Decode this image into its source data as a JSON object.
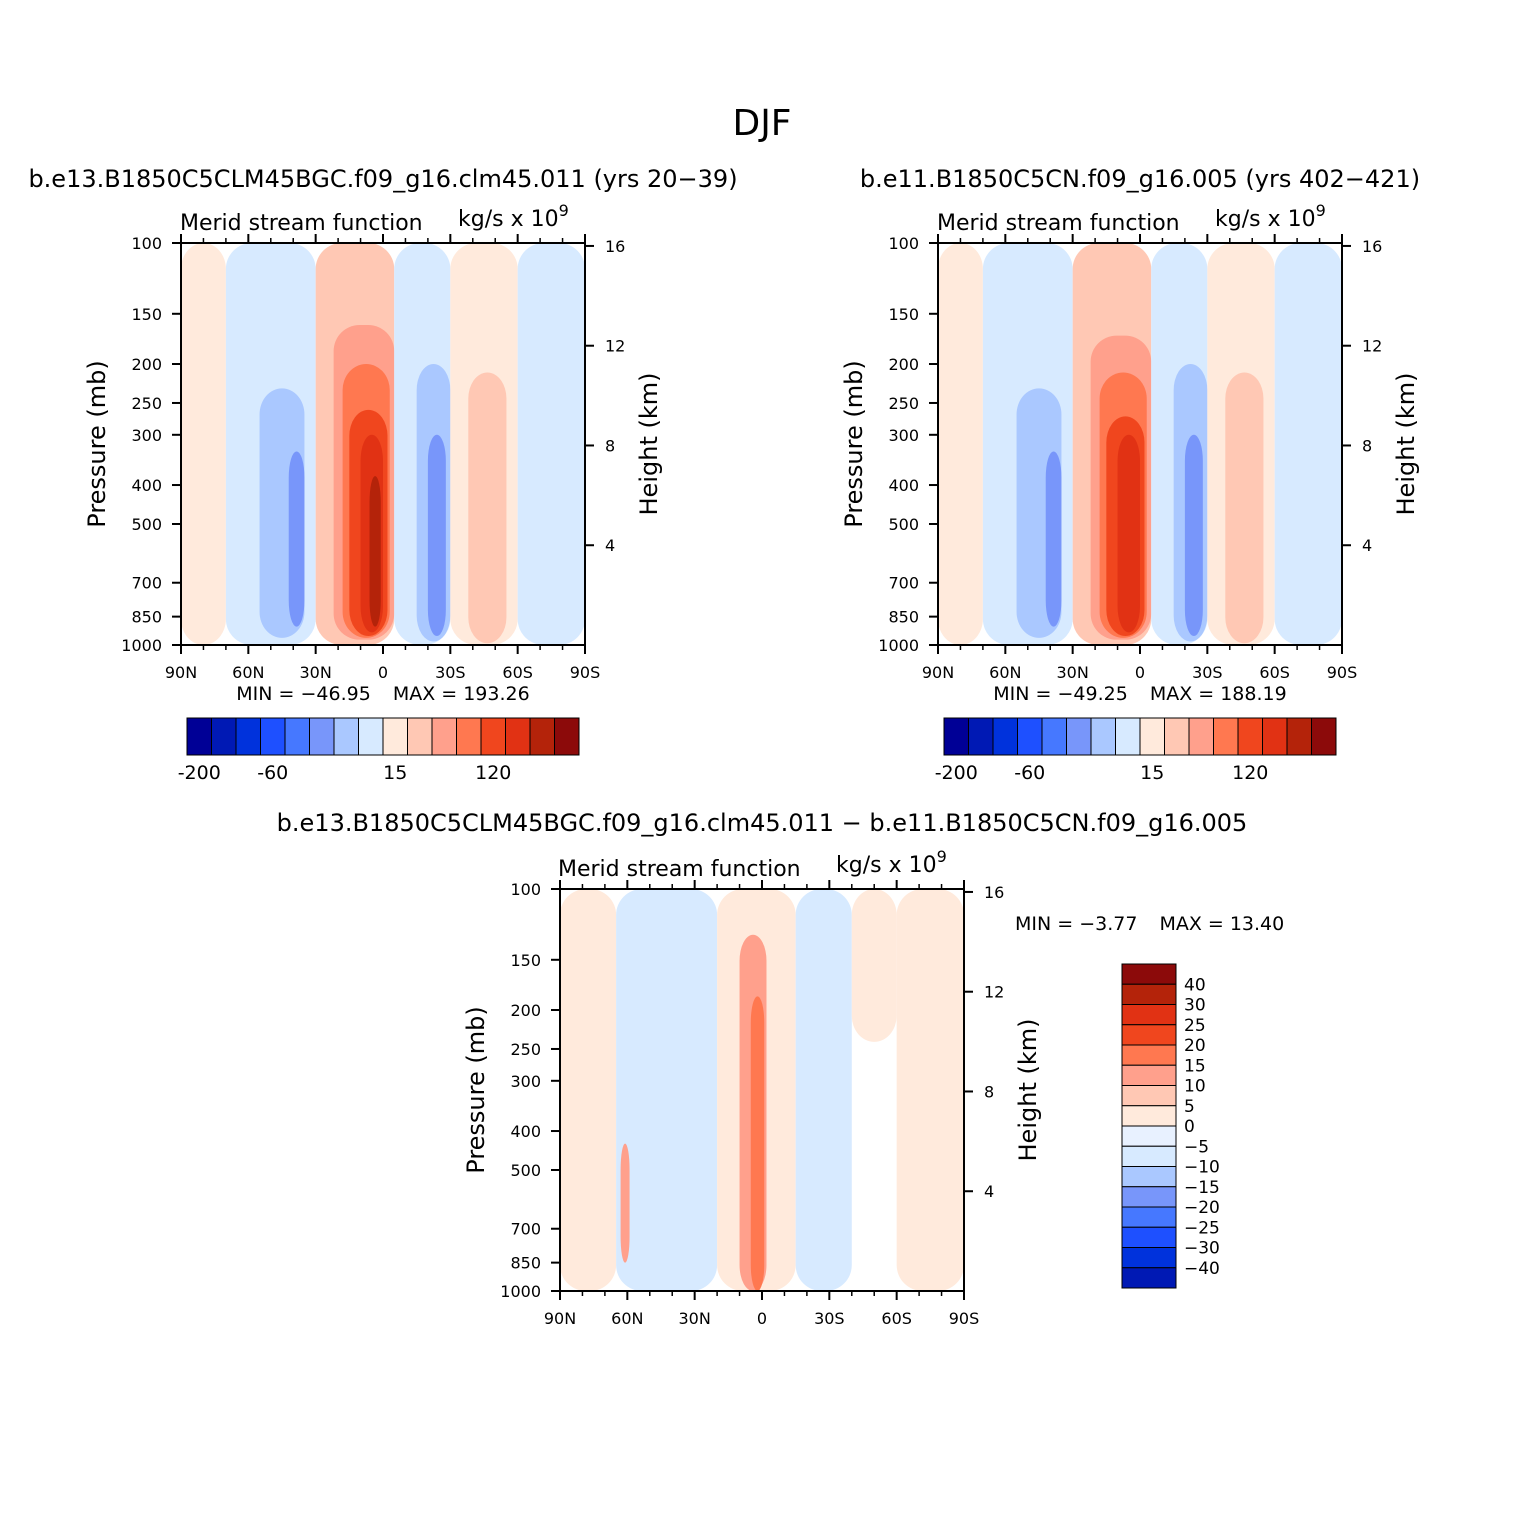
{
  "page_title": "DJF",
  "shared_axes": {
    "y_label": "Pressure (mb)",
    "y2_label": "Height (km)",
    "pressure_ticks": [
      100,
      150,
      200,
      250,
      300,
      400,
      500,
      700,
      850,
      1000
    ],
    "pressure_tick_labels": [
      "100",
      "150",
      "200",
      "250",
      "300",
      "400",
      "500",
      "700",
      "850",
      "1000"
    ],
    "height_ticks_km": [
      16,
      12,
      8,
      4
    ],
    "height_tick_labels": [
      "16",
      "12",
      "8",
      "4"
    ],
    "lat_ticks": [
      90,
      60,
      30,
      0,
      -30,
      -60,
      -90
    ],
    "lat_tick_labels": [
      "90N",
      "60N",
      "30N",
      "0",
      "30S",
      "60S",
      "90S"
    ],
    "subtitle_left": "Merid stream function",
    "units_text": "kg/s x 10",
    "units_exp": "9"
  },
  "colorbar_main": {
    "colors": [
      "#000096",
      "#0019b4",
      "#0032dc",
      "#1e50ff",
      "#4678ff",
      "#7896fa",
      "#aac8ff",
      "#d7eaff",
      "#ffeadc",
      "#ffc8b4",
      "#ffa08c",
      "#ff7850",
      "#f0461e",
      "#e13214",
      "#b4230a",
      "#8c0a0a"
    ],
    "labels": [
      "-200",
      "-60",
      "15",
      "120"
    ]
  },
  "colorbar_diff": {
    "colors": [
      "#8c0a0a",
      "#b4230a",
      "#e13214",
      "#f0461e",
      "#ff7850",
      "#ffa08c",
      "#ffc8b4",
      "#ffeadc",
      "#e8f1ff",
      "#d7eaff",
      "#aac8ff",
      "#7896fa",
      "#4678ff",
      "#1e50ff",
      "#0032dc",
      "#0019b4"
    ],
    "labels": [
      "40",
      "30",
      "25",
      "20",
      "15",
      "10",
      "5",
      "0",
      "−5",
      "−10",
      "−15",
      "−20",
      "−25",
      "−30",
      "−40"
    ]
  },
  "chart_data": [
    {
      "type": "heatmap",
      "title": "b.e13.B1850C5CLM45BGC.f09_g16.clm45.011 (yrs 20−39)",
      "subtitle": "Merid stream function",
      "units": "kg/s x 10^9",
      "xlabel": "",
      "ylabel": "Pressure (mb)",
      "y2label": "Height (km)",
      "xlim": [
        90,
        -90
      ],
      "ylim": [
        1000,
        100
      ],
      "min_label": "MIN = −46.95",
      "max_label": "MAX = 193.26",
      "cells": [
        {
          "lon": [
            90,
            70
          ],
          "p": [
            100,
            1000
          ],
          "value": 5
        },
        {
          "lon": [
            70,
            30
          ],
          "p": [
            100,
            1000
          ],
          "value": -10
        },
        {
          "lon": [
            55,
            35
          ],
          "p": [
            230,
            960
          ],
          "value": -25
        },
        {
          "lon": [
            42,
            35
          ],
          "p": [
            330,
            900
          ],
          "value": -40
        },
        {
          "lon": [
            30,
            -5
          ],
          "p": [
            100,
            1000
          ],
          "value": 15
        },
        {
          "lon": [
            22,
            -5
          ],
          "p": [
            160,
            970
          ],
          "value": 40
        },
        {
          "lon": [
            18,
            -3
          ],
          "p": [
            200,
            960
          ],
          "value": 80
        },
        {
          "lon": [
            15,
            -2
          ],
          "p": [
            260,
            950
          ],
          "value": 120
        },
        {
          "lon": [
            10,
            0
          ],
          "p": [
            300,
            930
          ],
          "value": 160
        },
        {
          "lon": [
            6,
            1
          ],
          "p": [
            380,
            900
          ],
          "value": 190
        },
        {
          "lon": [
            -5,
            -30
          ],
          "p": [
            100,
            1000
          ],
          "value": -10
        },
        {
          "lon": [
            -15,
            -30
          ],
          "p": [
            200,
            980
          ],
          "value": -25
        },
        {
          "lon": [
            -20,
            -28
          ],
          "p": [
            300,
            950
          ],
          "value": -40
        },
        {
          "lon": [
            -30,
            -60
          ],
          "p": [
            100,
            1000
          ],
          "value": 5
        },
        {
          "lon": [
            -38,
            -55
          ],
          "p": [
            210,
            990
          ],
          "value": 15
        },
        {
          "lon": [
            -42,
            -50
          ],
          "p": [
            320,
            970
          ],
          "value": 30
        },
        {
          "lon": [
            -60,
            -90
          ],
          "p": [
            100,
            1000
          ],
          "value": -10
        }
      ]
    },
    {
      "type": "heatmap",
      "title": "b.e11.B1850C5CN.f09_g16.005 (yrs 402−421)",
      "subtitle": "Merid stream function",
      "units": "kg/s x 10^9",
      "xlabel": "",
      "ylabel": "Pressure (mb)",
      "y2label": "Height (km)",
      "xlim": [
        90,
        -90
      ],
      "ylim": [
        1000,
        100
      ],
      "min_label": "MIN = −49.25",
      "max_label": "MAX = 188.19",
      "cells": [
        {
          "lon": [
            90,
            70
          ],
          "p": [
            100,
            1000
          ],
          "value": 5
        },
        {
          "lon": [
            70,
            30
          ],
          "p": [
            100,
            1000
          ],
          "value": -10
        },
        {
          "lon": [
            55,
            35
          ],
          "p": [
            230,
            960
          ],
          "value": -25
        },
        {
          "lon": [
            42,
            35
          ],
          "p": [
            330,
            900
          ],
          "value": -40
        },
        {
          "lon": [
            30,
            -5
          ],
          "p": [
            100,
            1000
          ],
          "value": 15
        },
        {
          "lon": [
            22,
            -5
          ],
          "p": [
            170,
            970
          ],
          "value": 40
        },
        {
          "lon": [
            18,
            -3
          ],
          "p": [
            210,
            960
          ],
          "value": 80
        },
        {
          "lon": [
            15,
            -2
          ],
          "p": [
            270,
            950
          ],
          "value": 120
        },
        {
          "lon": [
            10,
            0
          ],
          "p": [
            300,
            930
          ],
          "value": 160
        },
        {
          "lon": [
            6,
            1
          ],
          "p": [
            400,
            900
          ],
          "value": 185
        },
        {
          "lon": [
            -5,
            -30
          ],
          "p": [
            100,
            1000
          ],
          "value": -10
        },
        {
          "lon": [
            -15,
            -30
          ],
          "p": [
            200,
            980
          ],
          "value": -25
        },
        {
          "lon": [
            -20,
            -28
          ],
          "p": [
            300,
            950
          ],
          "value": -40
        },
        {
          "lon": [
            -30,
            -60
          ],
          "p": [
            100,
            1000
          ],
          "value": 5
        },
        {
          "lon": [
            -38,
            -55
          ],
          "p": [
            210,
            990
          ],
          "value": 15
        },
        {
          "lon": [
            -42,
            -50
          ],
          "p": [
            320,
            970
          ],
          "value": 30
        },
        {
          "lon": [
            -60,
            -90
          ],
          "p": [
            100,
            1000
          ],
          "value": -10
        }
      ]
    },
    {
      "type": "heatmap",
      "title": "b.e13.B1850C5CLM45BGC.f09_g16.clm45.011 − b.e11.B1850C5CN.f09_g16.005",
      "subtitle": "Merid stream function",
      "units": "kg/s x 10^9",
      "xlabel": "",
      "ylabel": "Pressure (mb)",
      "y2label": "Height (km)",
      "xlim": [
        90,
        -90
      ],
      "ylim": [
        1000,
        100
      ],
      "min_label": "MIN =  −3.77",
      "max_label": "MAX =  13.40",
      "cells": [
        {
          "lon": [
            90,
            65
          ],
          "p": [
            100,
            1000
          ],
          "value": 2
        },
        {
          "lon": [
            65,
            20
          ],
          "p": [
            100,
            1000
          ],
          "value": -2
        },
        {
          "lon": [
            63,
            59
          ],
          "p": [
            430,
            850
          ],
          "value": 7
        },
        {
          "lon": [
            20,
            -15
          ],
          "p": [
            100,
            1000
          ],
          "value": 2
        },
        {
          "lon": [
            10,
            -2
          ],
          "p": [
            130,
            1000
          ],
          "value": 7
        },
        {
          "lon": [
            5,
            -1
          ],
          "p": [
            185,
            1000
          ],
          "value": 12
        },
        {
          "lon": [
            -15,
            -40
          ],
          "p": [
            100,
            1000
          ],
          "value": -2
        },
        {
          "lon": [
            -40,
            -60
          ],
          "p": [
            100,
            240
          ],
          "value": 2
        },
        {
          "lon": [
            -60,
            -90
          ],
          "p": [
            100,
            1000
          ],
          "value": 2
        }
      ]
    }
  ]
}
